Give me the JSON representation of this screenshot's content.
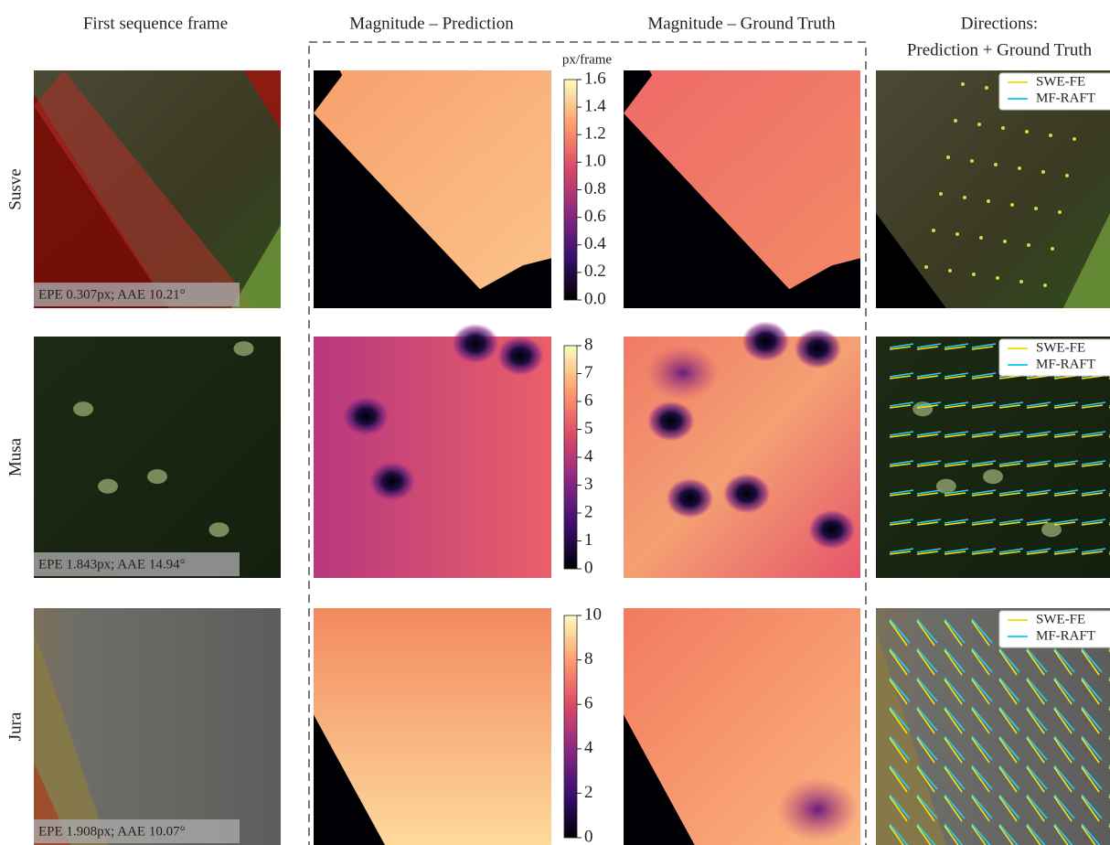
{
  "columns": [
    "First sequence frame",
    "Magnitude – Prediction",
    "Magnitude – Ground Truth",
    "Directions:"
  ],
  "columns_subtitle": "Prediction + Ground Truth",
  "colorbar_unit": "px/frame",
  "legend": [
    {
      "name": "SWE-FE",
      "color": "#f2e21a"
    },
    {
      "name": "MF-RAFT",
      "color": "#22d3f0"
    }
  ],
  "rows": [
    {
      "label": "Susve",
      "metrics": "EPE 0.307px; AAE 10.21°",
      "colorbar": {
        "lim": [
          0,
          1.6
        ],
        "ticks": [
          {
            "value": 0,
            "label": "0.0"
          },
          0.2,
          0.4,
          0.6,
          0.8,
          {
            "value": 1,
            "label": "1.0"
          },
          1.2,
          1.4,
          1.6
        ]
      }
    },
    {
      "label": "Musa",
      "metrics": "EPE 1.843px; AAE 14.94°",
      "colorbar": {
        "lim": [
          0,
          8
        ],
        "ticks": [
          0,
          1,
          2,
          3,
          4,
          5,
          6,
          7,
          8
        ]
      }
    },
    {
      "label": "Jura",
      "metrics": "EPE 1.908px; AAE 10.07°",
      "colorbar": {
        "lim": [
          0,
          10
        ],
        "ticks": [
          0,
          2,
          4,
          6,
          8,
          10
        ]
      }
    }
  ]
}
